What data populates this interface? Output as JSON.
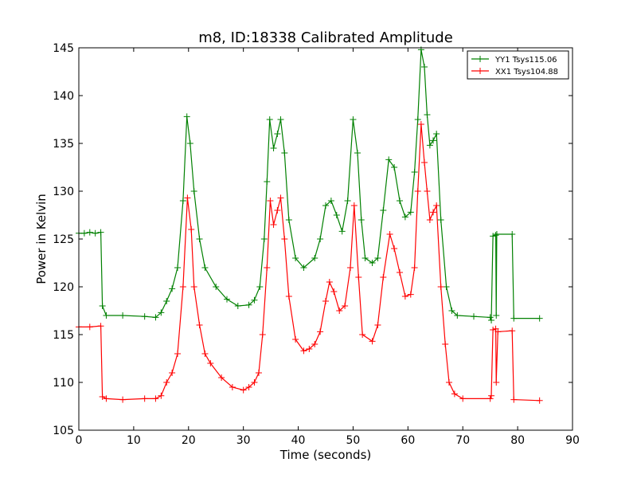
{
  "chart_data": {
    "type": "line",
    "title": "m8, ID:18338 Calibrated Amplitude",
    "xlabel": "Time (seconds)",
    "ylabel": "Power in Kelvin",
    "xlim": [
      0,
      90
    ],
    "ylim": [
      105,
      145
    ],
    "xticks": [
      0,
      10,
      20,
      30,
      40,
      50,
      60,
      70,
      80,
      90
    ],
    "yticks": [
      105,
      110,
      115,
      120,
      125,
      130,
      135,
      140,
      145
    ],
    "grid": false,
    "legend_position": "top-right",
    "series": [
      {
        "name": "YY1 Tsys115.06",
        "color": "#008000",
        "marker": "+",
        "points": [
          [
            0,
            125.6
          ],
          [
            1,
            125.6
          ],
          [
            2,
            125.7
          ],
          [
            3,
            125.6
          ],
          [
            4,
            125.7
          ],
          [
            4.3,
            118
          ],
          [
            5,
            117
          ],
          [
            8,
            117
          ],
          [
            12,
            116.9
          ],
          [
            14,
            116.8
          ],
          [
            15,
            117.3
          ],
          [
            16,
            118.5
          ],
          [
            17,
            119.8
          ],
          [
            18,
            122
          ],
          [
            19,
            129
          ],
          [
            19.7,
            137.8
          ],
          [
            20.3,
            135
          ],
          [
            21,
            130
          ],
          [
            22,
            125
          ],
          [
            23,
            122
          ],
          [
            25,
            120
          ],
          [
            27,
            118.7
          ],
          [
            29,
            118
          ],
          [
            31,
            118.1
          ],
          [
            32,
            118.6
          ],
          [
            33,
            120
          ],
          [
            33.8,
            125
          ],
          [
            34.3,
            131
          ],
          [
            34.8,
            137.5
          ],
          [
            35.5,
            134.5
          ],
          [
            36.2,
            136
          ],
          [
            36.8,
            137.5
          ],
          [
            37.5,
            134
          ],
          [
            38.3,
            127
          ],
          [
            39.5,
            123
          ],
          [
            41,
            122
          ],
          [
            43,
            123
          ],
          [
            44,
            125
          ],
          [
            45,
            128.5
          ],
          [
            46,
            129
          ],
          [
            47,
            127.5
          ],
          [
            48,
            125.8
          ],
          [
            49,
            129
          ],
          [
            50,
            137.5
          ],
          [
            50.8,
            134
          ],
          [
            51.5,
            127
          ],
          [
            52.2,
            123
          ],
          [
            53.5,
            122.5
          ],
          [
            54.5,
            123
          ],
          [
            55.5,
            128
          ],
          [
            56.5,
            133.3
          ],
          [
            57.5,
            132.5
          ],
          [
            58.5,
            129
          ],
          [
            59.5,
            127.3
          ],
          [
            60.5,
            127.8
          ],
          [
            61.2,
            132
          ],
          [
            61.8,
            137.5
          ],
          [
            62.4,
            144.8
          ],
          [
            63,
            143
          ],
          [
            63.5,
            138
          ],
          [
            64,
            134.8
          ],
          [
            64.6,
            135.3
          ],
          [
            65.2,
            136
          ],
          [
            66,
            127
          ],
          [
            67,
            120
          ],
          [
            68,
            117.5
          ],
          [
            69,
            117
          ],
          [
            72,
            116.9
          ],
          [
            75,
            116.8
          ],
          [
            75.2,
            116.5
          ],
          [
            75.5,
            125.3
          ],
          [
            76,
            125.4
          ],
          [
            76.1,
            117
          ],
          [
            76.2,
            125.5
          ],
          [
            79,
            125.5
          ],
          [
            79.3,
            116.7
          ],
          [
            84,
            116.7
          ]
        ]
      },
      {
        "name": "XX1 Tsys104.88",
        "color": "#ff0000",
        "marker": "+",
        "points": [
          [
            0,
            115.8
          ],
          [
            2,
            115.8
          ],
          [
            4,
            115.9
          ],
          [
            4.3,
            108.5
          ],
          [
            5,
            108.3
          ],
          [
            8,
            108.2
          ],
          [
            12,
            108.3
          ],
          [
            14,
            108.3
          ],
          [
            15,
            108.6
          ],
          [
            16,
            110
          ],
          [
            17,
            111
          ],
          [
            18,
            113
          ],
          [
            19,
            120
          ],
          [
            19.8,
            129.3
          ],
          [
            20.5,
            126
          ],
          [
            21,
            120
          ],
          [
            22,
            116
          ],
          [
            23,
            113
          ],
          [
            24,
            112
          ],
          [
            26,
            110.5
          ],
          [
            28,
            109.5
          ],
          [
            30,
            109.2
          ],
          [
            31,
            109.5
          ],
          [
            32,
            110
          ],
          [
            32.8,
            111
          ],
          [
            33.5,
            115
          ],
          [
            34.3,
            122
          ],
          [
            34.9,
            129
          ],
          [
            35.5,
            126.5
          ],
          [
            36.2,
            128
          ],
          [
            36.8,
            129.3
          ],
          [
            37.5,
            125
          ],
          [
            38.3,
            119
          ],
          [
            39.5,
            114.5
          ],
          [
            41,
            113.3
          ],
          [
            42,
            113.5
          ],
          [
            43,
            114
          ],
          [
            44,
            115.3
          ],
          [
            45,
            118.5
          ],
          [
            45.7,
            120.5
          ],
          [
            46.5,
            119.5
          ],
          [
            47.5,
            117.5
          ],
          [
            48.5,
            118
          ],
          [
            49.5,
            122
          ],
          [
            50.2,
            128.5
          ],
          [
            51,
            121
          ],
          [
            51.7,
            115
          ],
          [
            53.5,
            114.3
          ],
          [
            54.5,
            116
          ],
          [
            55.5,
            121
          ],
          [
            56.7,
            125.5
          ],
          [
            57.5,
            124
          ],
          [
            58.5,
            121.5
          ],
          [
            59.5,
            119
          ],
          [
            60.5,
            119.2
          ],
          [
            61.2,
            122
          ],
          [
            61.8,
            130
          ],
          [
            62.4,
            137
          ],
          [
            63,
            133
          ],
          [
            63.5,
            130
          ],
          [
            64,
            127
          ],
          [
            64.6,
            127.8
          ],
          [
            65.2,
            128.5
          ],
          [
            66,
            120
          ],
          [
            66.8,
            114
          ],
          [
            67.5,
            110
          ],
          [
            68.5,
            108.8
          ],
          [
            70,
            108.3
          ],
          [
            75,
            108.3
          ],
          [
            75.2,
            108.6
          ],
          [
            75.5,
            115.5
          ],
          [
            76,
            115.6
          ],
          [
            76.1,
            110
          ],
          [
            76.4,
            115.3
          ],
          [
            79,
            115.4
          ],
          [
            79.3,
            108.2
          ],
          [
            84,
            108.1
          ]
        ]
      }
    ]
  }
}
